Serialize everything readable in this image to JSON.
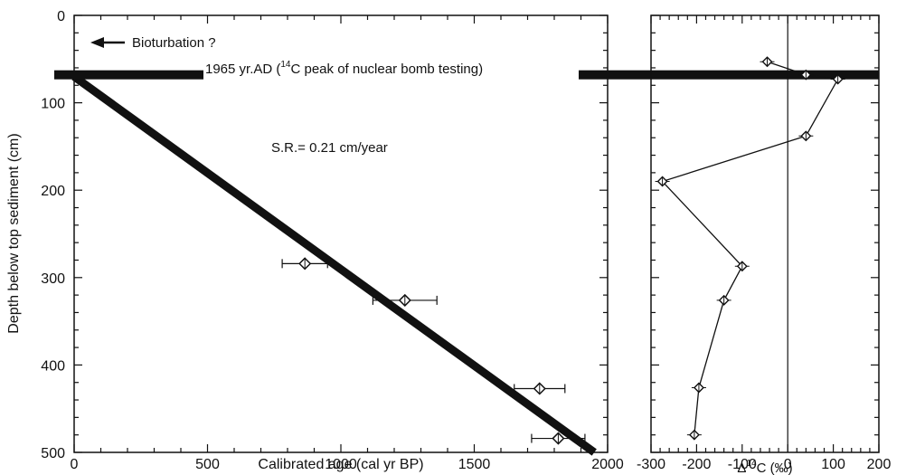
{
  "chart_data": [
    {
      "type": "scatter",
      "title": "",
      "xlabel": "Calibrated age (cal yr BP)",
      "ylabel": "Depth below top sediment (cm)",
      "xlim": [
        0,
        2000
      ],
      "ylim": [
        0,
        500
      ],
      "y_inverted": true,
      "xticks": [
        "0",
        "500",
        "1000",
        "1500",
        "2000"
      ],
      "yticks": [
        "0",
        "100",
        "200",
        "300",
        "400",
        "500"
      ],
      "points": [
        {
          "x": 865,
          "y": 284,
          "xerr": 85
        },
        {
          "x": 1240,
          "y": 326,
          "xerr": 120
        },
        {
          "x": 1745,
          "y": 427,
          "xerr": 95
        },
        {
          "x": 1815,
          "y": 484,
          "xerr": 100
        }
      ],
      "regression_line": {
        "x": [
          0,
          1950
        ],
        "y": [
          70,
          500
        ]
      },
      "bomb_peak_depth": 68,
      "annotations": {
        "bioturbation": "Bioturbation ?",
        "bomb_label": "1965 yr.AD (",
        "bomb_label_super": "14",
        "bomb_label_tail": "C peak of nuclear bomb testing)",
        "sed_rate": "S.R.= 0.21 cm/year"
      }
    },
    {
      "type": "line",
      "title": "",
      "xlabel": "Δ14C (‰)",
      "xlabel_parts": {
        "delta": "Δ",
        "super": "14",
        "rest": "C (‰)"
      },
      "xlim": [
        -300,
        200
      ],
      "ylim": [
        0,
        500
      ],
      "y_inverted": true,
      "xticks": [
        "-300",
        "-200",
        "-100",
        "0",
        "100",
        "200"
      ],
      "series": [
        {
          "x": [
            -45,
            40,
            110,
            40,
            -275,
            -100,
            -140,
            -195,
            -205
          ],
          "y": [
            53,
            68,
            73,
            138,
            190,
            287,
            326,
            426,
            480
          ]
        }
      ]
    }
  ]
}
